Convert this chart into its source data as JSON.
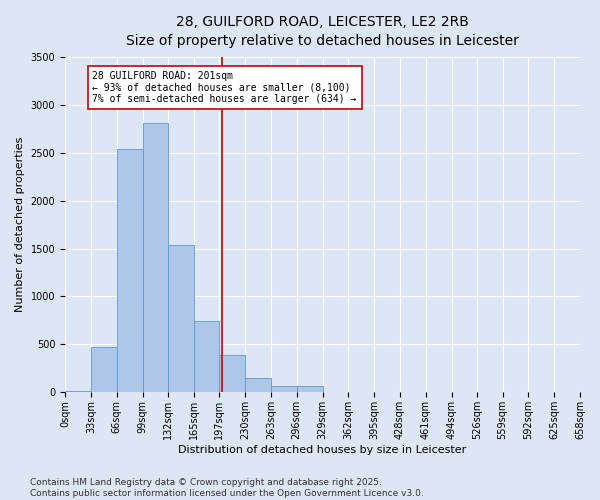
{
  "title_line1": "28, GUILFORD ROAD, LEICESTER, LE2 2RB",
  "title_line2": "Size of property relative to detached houses in Leicester",
  "xlabel": "Distribution of detached houses by size in Leicester",
  "ylabel": "Number of detached properties",
  "bar_edges": [
    0,
    33,
    66,
    99,
    132,
    165,
    197,
    230,
    263,
    296,
    329,
    362,
    395,
    428,
    461,
    494,
    526,
    559,
    592,
    625,
    658
  ],
  "bar_heights": [
    10,
    470,
    2540,
    2810,
    1540,
    740,
    390,
    155,
    70,
    65,
    0,
    0,
    0,
    0,
    0,
    0,
    0,
    0,
    0,
    0
  ],
  "bar_color": "#aec6e8",
  "bar_edge_color": "#5b9bd5",
  "subject_value": 201,
  "vline_color": "#cc0000",
  "annotation_text": "28 GUILFORD ROAD: 201sqm\n← 93% of detached houses are smaller (8,100)\n7% of semi-detached houses are larger (634) →",
  "annotation_box_color": "#ffffff",
  "annotation_box_edge": "#cc0000",
  "ylim": [
    0,
    3500
  ],
  "yticks": [
    0,
    500,
    1000,
    1500,
    2000,
    2500,
    3000,
    3500
  ],
  "bg_color": "#dce6f5",
  "plot_bg_color": "#dce6f5",
  "footer_line1": "Contains HM Land Registry data © Crown copyright and database right 2025.",
  "footer_line2": "Contains public sector information licensed under the Open Government Licence v3.0.",
  "title_fontsize": 10,
  "subtitle_fontsize": 9,
  "axis_label_fontsize": 8,
  "tick_fontsize": 7,
  "annotation_fontsize": 7,
  "footer_fontsize": 6.5
}
